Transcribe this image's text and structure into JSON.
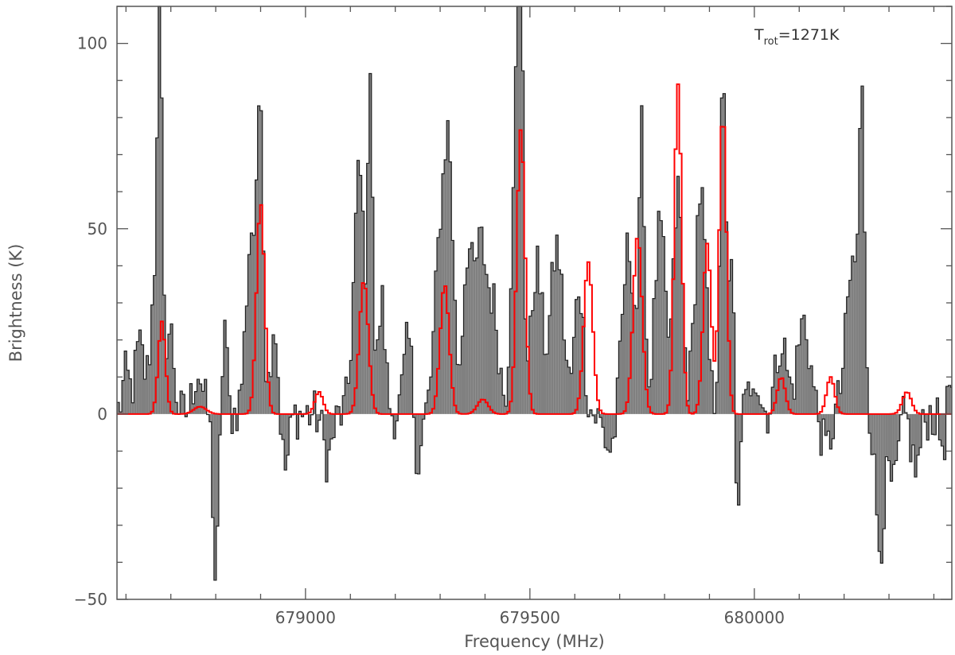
{
  "chart_data": {
    "type": "area",
    "title": "",
    "xlabel": "Frequency (MHz)",
    "ylabel": "Brightness (K)",
    "xlim": [
      678580,
      680440
    ],
    "ylim": [
      -50,
      110
    ],
    "x_ticks": [
      679000,
      679500,
      680000
    ],
    "y_ticks": [
      -50,
      0,
      50,
      100
    ],
    "y_tick_labels": [
      "−50",
      "0",
      "50",
      "100"
    ],
    "grid": false,
    "annotation": {
      "base": "T",
      "sub": "rot",
      "rest": "=1271K"
    },
    "observed": {
      "style": "filled histogram",
      "color": "#808080",
      "edge_color": "#202020",
      "x_start": 678580,
      "x_step": 5.4,
      "peaks": [
        {
          "x": 678600,
          "h": 10,
          "w": 8
        },
        {
          "x": 678630,
          "h": 18,
          "w": 10
        },
        {
          "x": 678670,
          "h": 45,
          "w": 12
        },
        {
          "x": 678675,
          "h": 100,
          "w": 4
        },
        {
          "x": 678700,
          "h": 20,
          "w": 8
        },
        {
          "x": 678760,
          "h": 12,
          "w": 10
        },
        {
          "x": 678800,
          "h": -45,
          "w": 6
        },
        {
          "x": 678820,
          "h": 25,
          "w": 5
        },
        {
          "x": 678880,
          "h": 50,
          "w": 12
        },
        {
          "x": 678900,
          "h": 80,
          "w": 6
        },
        {
          "x": 678930,
          "h": 25,
          "w": 8
        },
        {
          "x": 678955,
          "h": -15,
          "w": 8
        },
        {
          "x": 679050,
          "h": -12,
          "w": 10
        },
        {
          "x": 679120,
          "h": 65,
          "w": 12
        },
        {
          "x": 679145,
          "h": 90,
          "w": 5
        },
        {
          "x": 679170,
          "h": 30,
          "w": 8
        },
        {
          "x": 679230,
          "h": 20,
          "w": 10
        },
        {
          "x": 679250,
          "h": -15,
          "w": 8
        },
        {
          "x": 679300,
          "h": 45,
          "w": 12
        },
        {
          "x": 679320,
          "h": 63,
          "w": 10
        },
        {
          "x": 679360,
          "h": 40,
          "w": 10
        },
        {
          "x": 679390,
          "h": 45,
          "w": 14
        },
        {
          "x": 679420,
          "h": 25,
          "w": 12
        },
        {
          "x": 679470,
          "h": 85,
          "w": 10
        },
        {
          "x": 679480,
          "h": 95,
          "w": 5
        },
        {
          "x": 679515,
          "h": 40,
          "w": 12
        },
        {
          "x": 679560,
          "h": 45,
          "w": 14
        },
        {
          "x": 679610,
          "h": 35,
          "w": 10
        },
        {
          "x": 679680,
          "h": -10,
          "w": 14
        },
        {
          "x": 679720,
          "h": 45,
          "w": 14
        },
        {
          "x": 679750,
          "h": 72,
          "w": 6
        },
        {
          "x": 679790,
          "h": 50,
          "w": 12
        },
        {
          "x": 679830,
          "h": 60,
          "w": 10
        },
        {
          "x": 679880,
          "h": 60,
          "w": 12
        },
        {
          "x": 679930,
          "h": 85,
          "w": 7
        },
        {
          "x": 679950,
          "h": 35,
          "w": 8
        },
        {
          "x": 679962,
          "h": -45,
          "w": 4
        },
        {
          "x": 680000,
          "h": 12,
          "w": 10
        },
        {
          "x": 680060,
          "h": 20,
          "w": 12
        },
        {
          "x": 680110,
          "h": 25,
          "w": 14
        },
        {
          "x": 680160,
          "h": -10,
          "w": 10
        },
        {
          "x": 680220,
          "h": 40,
          "w": 15
        },
        {
          "x": 680240,
          "h": 70,
          "w": 6
        },
        {
          "x": 680280,
          "h": -35,
          "w": 10
        },
        {
          "x": 680310,
          "h": -20,
          "w": 10
        },
        {
          "x": 680360,
          "h": -15,
          "w": 10
        },
        {
          "x": 680420,
          "h": -8,
          "w": 8
        },
        {
          "x": 680435,
          "h": 10,
          "w": 5
        }
      ]
    },
    "model": {
      "style": "step line",
      "color": "#ff0000",
      "x_step": 5.4,
      "peaks": [
        {
          "x": 678680,
          "h": 25,
          "w": 8
        },
        {
          "x": 678765,
          "h": 2,
          "w": 14
        },
        {
          "x": 678900,
          "h": 57,
          "w": 9
        },
        {
          "x": 679030,
          "h": 6,
          "w": 9
        },
        {
          "x": 679130,
          "h": 36,
          "w": 10
        },
        {
          "x": 679310,
          "h": 35,
          "w": 10
        },
        {
          "x": 679395,
          "h": 4,
          "w": 12
        },
        {
          "x": 679480,
          "h": 77,
          "w": 9
        },
        {
          "x": 679630,
          "h": 41,
          "w": 10
        },
        {
          "x": 679740,
          "h": 48,
          "w": 10
        },
        {
          "x": 679830,
          "h": 89,
          "w": 8
        },
        {
          "x": 679895,
          "h": 46,
          "w": 9
        },
        {
          "x": 679930,
          "h": 82,
          "w": 8
        },
        {
          "x": 680060,
          "h": 10,
          "w": 9
        },
        {
          "x": 680170,
          "h": 10,
          "w": 9
        },
        {
          "x": 680340,
          "h": 6,
          "w": 10
        }
      ]
    }
  }
}
